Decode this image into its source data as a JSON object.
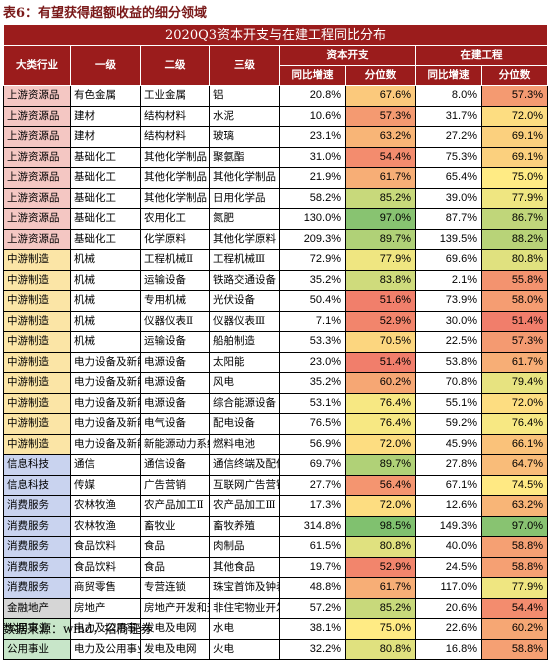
{
  "caption": "表6：有望获得超额收益的细分领域",
  "source": "数据来源：wind，招商证券",
  "table": {
    "title": "2020Q3资本开支与在建工程同比分布",
    "header_groups": [
      "资本开支",
      "在建工程"
    ],
    "headers": [
      "大类行业",
      "一级",
      "二级",
      "三级",
      "同比增速",
      "分位数",
      "同比增速",
      "分位数"
    ],
    "colors": {
      "header_bg": "#9b1c1c",
      "upstream_bg": "#f4c7c3",
      "midstream_bg": "#fbe5a6",
      "services_bg": "#c9d3ef",
      "finance_bg": "#d6d6d6",
      "utilities_bg": "#c8e6c9"
    },
    "rows": [
      {
        "seg": "上游资源品",
        "l1": "有色金属",
        "l2": "工业金属",
        "l3": "铝",
        "cg": "20.8%",
        "cp": "67.6%",
        "cpv": 67.6,
        "wg": "8.0%",
        "wp": "57.3%",
        "wpv": 57.3
      },
      {
        "seg": "上游资源品",
        "l1": "建材",
        "l2": "结构材料",
        "l3": "水泥",
        "cg": "10.6%",
        "cp": "57.3%",
        "cpv": 57.3,
        "wg": "31.7%",
        "wp": "72.0%",
        "wpv": 72.0
      },
      {
        "seg": "上游资源品",
        "l1": "建材",
        "l2": "结构材料",
        "l3": "玻璃",
        "cg": "23.1%",
        "cp": "63.2%",
        "cpv": 63.2,
        "wg": "27.2%",
        "wp": "69.1%",
        "wpv": 69.1
      },
      {
        "seg": "上游资源品",
        "l1": "基础化工",
        "l2": "其他化学制品",
        "l3": "聚氨酯",
        "cg": "31.0%",
        "cp": "54.4%",
        "cpv": 54.4,
        "wg": "75.3%",
        "wp": "69.1%",
        "wpv": 69.1
      },
      {
        "seg": "上游资源品",
        "l1": "基础化工",
        "l2": "其他化学制品",
        "l3": "其他化学制品",
        "cg": "21.9%",
        "cp": "61.7%",
        "cpv": 61.7,
        "wg": "65.4%",
        "wp": "75.0%",
        "wpv": 75.0
      },
      {
        "seg": "上游资源品",
        "l1": "基础化工",
        "l2": "其他化学制品",
        "l3": "日用化学品",
        "cg": "58.2%",
        "cp": "85.2%",
        "cpv": 85.2,
        "wg": "39.0%",
        "wp": "77.9%",
        "wpv": 77.9
      },
      {
        "seg": "上游资源品",
        "l1": "基础化工",
        "l2": "农用化工",
        "l3": "氮肥",
        "cg": "130.0%",
        "cp": "97.0%",
        "cpv": 97.0,
        "wg": "87.7%",
        "wp": "86.7%",
        "wpv": 86.7
      },
      {
        "seg": "上游资源品",
        "l1": "基础化工",
        "l2": "化学原料",
        "l3": "其他化学原料",
        "cg": "209.3%",
        "cp": "89.7%",
        "cpv": 89.7,
        "wg": "139.5%",
        "wp": "88.2%",
        "wpv": 88.2
      },
      {
        "seg": "中游制造",
        "l1": "机械",
        "l2": "工程机械Ⅱ",
        "l3": "工程机械Ⅲ",
        "cg": "72.9%",
        "cp": "77.9%",
        "cpv": 77.9,
        "wg": "69.6%",
        "wp": "80.8%",
        "wpv": 80.8
      },
      {
        "seg": "中游制造",
        "l1": "机械",
        "l2": "运输设备",
        "l3": "铁路交通设备",
        "cg": "35.2%",
        "cp": "83.8%",
        "cpv": 83.8,
        "wg": "2.1%",
        "wp": "55.8%",
        "wpv": 55.8
      },
      {
        "seg": "中游制造",
        "l1": "机械",
        "l2": "专用机械",
        "l3": "光伏设备",
        "cg": "50.4%",
        "cp": "51.6%",
        "cpv": 51.6,
        "wg": "73.9%",
        "wp": "58.0%",
        "wpv": 58.0
      },
      {
        "seg": "中游制造",
        "l1": "机械",
        "l2": "仪器仪表Ⅱ",
        "l3": "仪器仪表Ⅲ",
        "cg": "7.1%",
        "cp": "52.9%",
        "cpv": 52.9,
        "wg": "30.0%",
        "wp": "51.4%",
        "wpv": 51.4
      },
      {
        "seg": "中游制造",
        "l1": "机械",
        "l2": "运输设备",
        "l3": "船舶制造",
        "cg": "53.3%",
        "cp": "70.5%",
        "cpv": 70.5,
        "wg": "22.5%",
        "wp": "57.3%",
        "wpv": 57.3
      },
      {
        "seg": "中游制造",
        "l1": "电力设备及新能源",
        "l2": "电源设备",
        "l3": "太阳能",
        "cg": "23.0%",
        "cp": "51.4%",
        "cpv": 51.4,
        "wg": "53.8%",
        "wp": "61.7%",
        "wpv": 61.7
      },
      {
        "seg": "中游制造",
        "l1": "电力设备及新能源",
        "l2": "电源设备",
        "l3": "风电",
        "cg": "35.2%",
        "cp": "60.2%",
        "cpv": 60.2,
        "wg": "70.8%",
        "wp": "79.4%",
        "wpv": 79.4
      },
      {
        "seg": "中游制造",
        "l1": "电力设备及新能源",
        "l2": "电源设备",
        "l3": "综合能源设备",
        "cg": "53.1%",
        "cp": "76.4%",
        "cpv": 76.4,
        "wg": "55.1%",
        "wp": "72.0%",
        "wpv": 72.0
      },
      {
        "seg": "中游制造",
        "l1": "电力设备及新能源",
        "l2": "电气设备",
        "l3": "配电设备",
        "cg": "76.5%",
        "cp": "76.4%",
        "cpv": 76.4,
        "wg": "59.2%",
        "wp": "76.4%",
        "wpv": 76.4
      },
      {
        "seg": "中游制造",
        "l1": "电力设备及新能源",
        "l2": "新能源动力系统",
        "l3": "燃料电池",
        "cg": "56.9%",
        "cp": "72.0%",
        "cpv": 72.0,
        "wg": "45.9%",
        "wp": "66.1%",
        "wpv": 66.1
      },
      {
        "seg": "信息科技",
        "l1": "通信",
        "l2": "通信设备",
        "l3": "通信终端及配件",
        "cg": "69.7%",
        "cp": "89.7%",
        "cpv": 89.7,
        "wg": "27.8%",
        "wp": "64.7%",
        "wpv": 64.7
      },
      {
        "seg": "信息科技",
        "l1": "传媒",
        "l2": "广告营销",
        "l3": "互联网广告营销",
        "cg": "27.7%",
        "cp": "56.4%",
        "cpv": 56.4,
        "wg": "67.1%",
        "wp": "74.5%",
        "wpv": 74.5
      },
      {
        "seg": "消费服务",
        "l1": "农林牧渔",
        "l2": "农产品加工Ⅱ",
        "l3": "农产品加工Ⅲ",
        "cg": "17.3%",
        "cp": "72.0%",
        "cpv": 72.0,
        "wg": "12.6%",
        "wp": "63.2%",
        "wpv": 63.2
      },
      {
        "seg": "消费服务",
        "l1": "农林牧渔",
        "l2": "畜牧业",
        "l3": "畜牧养殖",
        "cg": "314.8%",
        "cp": "98.5%",
        "cpv": 98.5,
        "wg": "149.3%",
        "wp": "97.0%",
        "wpv": 97.0
      },
      {
        "seg": "消费服务",
        "l1": "食品饮料",
        "l2": "食品",
        "l3": "肉制品",
        "cg": "61.5%",
        "cp": "80.8%",
        "cpv": 80.8,
        "wg": "40.0%",
        "wp": "58.8%",
        "wpv": 58.8
      },
      {
        "seg": "消费服务",
        "l1": "食品饮料",
        "l2": "食品",
        "l3": "其他食品",
        "cg": "19.7%",
        "cp": "52.9%",
        "cpv": 52.9,
        "wg": "24.5%",
        "wp": "58.8%",
        "wpv": 58.8
      },
      {
        "seg": "消费服务",
        "l1": "商贸零售",
        "l2": "专营连锁",
        "l3": "珠宝首饰及钟表",
        "cg": "48.8%",
        "cp": "61.7%",
        "cpv": 61.7,
        "wg": "117.0%",
        "wp": "77.9%",
        "wpv": 77.9
      },
      {
        "seg": "金融地产",
        "l1": "房地产",
        "l2": "房地产开发和运营",
        "l3": "非住宅物业开发和运营",
        "cg": "57.2%",
        "cp": "85.2%",
        "cpv": 85.2,
        "wg": "20.6%",
        "wp": "54.4%",
        "wpv": 54.4
      },
      {
        "seg": "公用事业",
        "l1": "电力及公用事业",
        "l2": "发电及电网",
        "l3": "水电",
        "cg": "38.1%",
        "cp": "75.0%",
        "cpv": 75.0,
        "wg": "22.6%",
        "wp": "60.2%",
        "wpv": 60.2
      },
      {
        "seg": "公用事业",
        "l1": "电力及公用事业",
        "l2": "发电及电网",
        "l3": "火电",
        "cg": "32.2%",
        "cp": "80.8%",
        "cpv": 80.8,
        "wg": "16.8%",
        "wp": "58.8%",
        "wpv": 58.8
      }
    ]
  }
}
